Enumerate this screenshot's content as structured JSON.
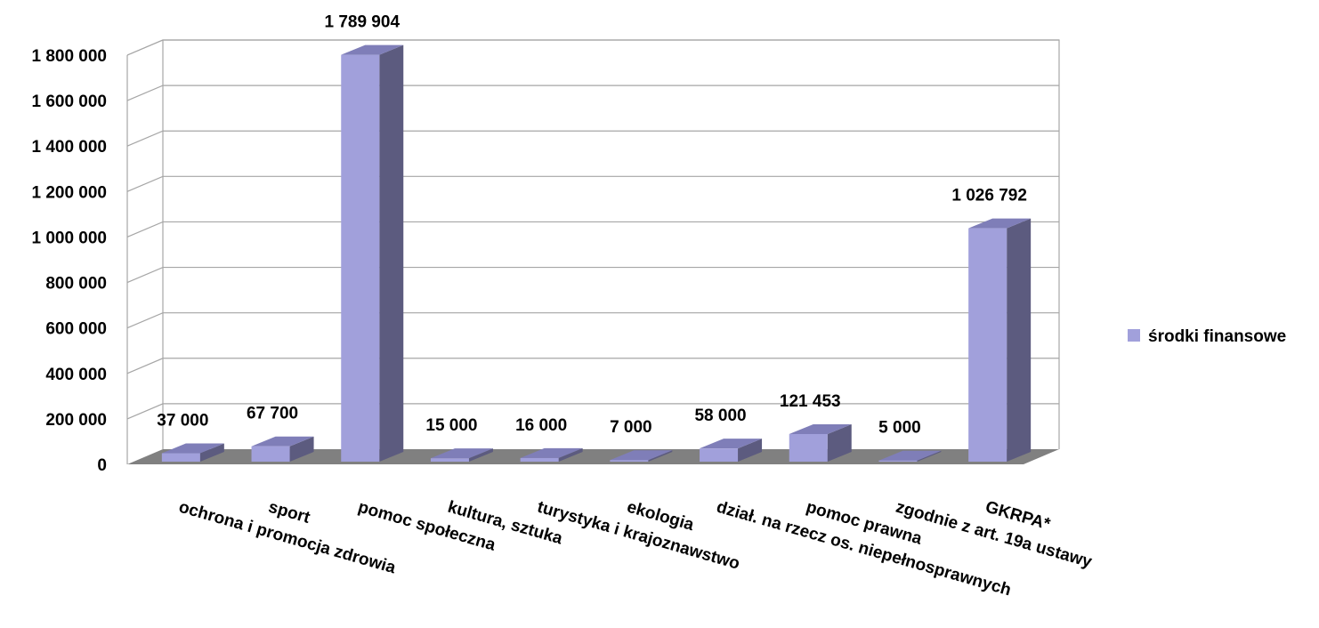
{
  "chart_data": {
    "type": "bar",
    "three_d": true,
    "categories": [
      "ochrona i promocja zdrowia",
      "sport",
      "pomoc społeczna",
      "kultura, sztuka",
      "turystyka i krajoznawstwo",
      "ekologia",
      "dział. na rzecz os. niepełnosprawnych",
      "pomoc prawna",
      "zgodnie z art. 19a ustawy",
      "GKRPA*"
    ],
    "series": [
      {
        "name": "środki finansowe",
        "values": [
          37000,
          67700,
          1789904,
          15000,
          16000,
          7000,
          58000,
          121453,
          5000,
          1026792
        ],
        "data_labels": [
          "37 000",
          "67 700",
          "1 789 904",
          "15 000",
          "16 000",
          "7 000",
          "58 000",
          "121 453",
          "5 000",
          "1 026 792"
        ],
        "color": "#a1a0db"
      }
    ],
    "ylim": [
      0,
      1800000
    ],
    "yticks": [
      0,
      200000,
      400000,
      600000,
      800000,
      1000000,
      1200000,
      1400000,
      1600000,
      1800000
    ],
    "ytick_labels": [
      "0",
      "200 000",
      "400 000",
      "600 000",
      "800 000",
      "1 000 000",
      "1 200 000",
      "1 400 000",
      "1 600 000",
      "1 800 000"
    ],
    "title": "",
    "xlabel": "",
    "ylabel": "",
    "grid": true,
    "legend_position": "right",
    "colors": {
      "bar_front": "#a1a0db",
      "bar_side": "#5c5b7f",
      "bar_top": "#7f7eb8",
      "floor": "#808080",
      "gridline": "#a6a6a6"
    }
  }
}
